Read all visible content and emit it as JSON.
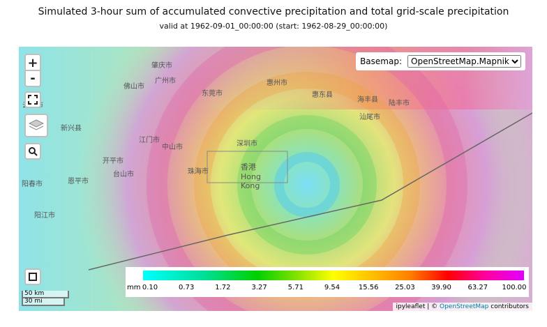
{
  "header": {
    "title": "Simulated 3-hour sum of accumulated convective precipitation and total grid-scale precipitation",
    "subtitle": "valid at 1962-09-01_00:00:00 (start: 1962-08-29_00:00:00)"
  },
  "controls": {
    "zoom_in": "+",
    "zoom_out": "-",
    "basemap_label": "Basemap:",
    "basemap_value": "OpenStreetMap.Mapnik"
  },
  "places": [
    "肇庆市",
    "云浮市",
    "佛山市",
    "广州市",
    "东莞市",
    "惠州市",
    "江门市",
    "中山市",
    "深圳市",
    "香港 Hong Kong",
    "珠海市",
    "汕尾市",
    "新兴县",
    "开平市",
    "台山市",
    "恩平市",
    "阳江市",
    "海丰县",
    "惠东县",
    "陆丰市",
    "阳春市"
  ],
  "colorbar": {
    "unit": "mm",
    "labels": [
      "0.10",
      "0.73",
      "1.72",
      "3.27",
      "5.71",
      "9.54",
      "15.56",
      "25.03",
      "39.90",
      "63.27",
      "100.00"
    ]
  },
  "scale": {
    "metric": "50 km",
    "imperial": "30 mi"
  },
  "attribution": {
    "lib": "ipyleaflet",
    "sep": "| ©",
    "osm": "OpenStreetMap",
    "rest": "contributors"
  }
}
